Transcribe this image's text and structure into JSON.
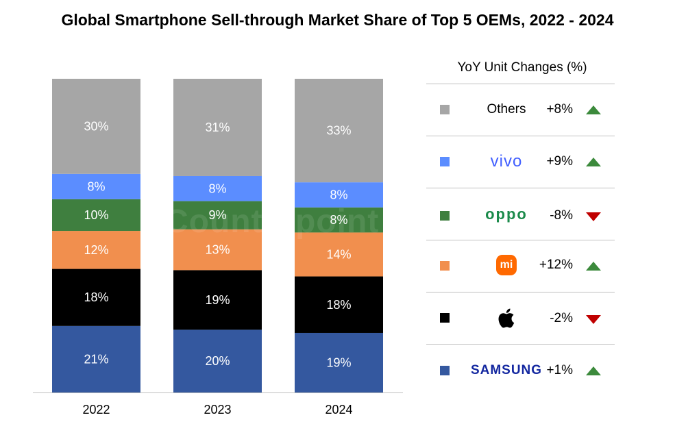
{
  "title": "Global Smartphone Sell-through Market Share of Top 5 OEMs, 2022 - 2024",
  "watermark": "Counterpoint",
  "colors": {
    "Others": "#a6a6a6",
    "vivo": "#5b8dff",
    "OPPO": "#3f7f3f",
    "Xiaomi": "#f18f4e",
    "Apple": "#000000",
    "Samsung": "#34589f",
    "up": "#3c8a3c",
    "down": "#c00000"
  },
  "chart_data": {
    "type": "bar",
    "stacked": true,
    "categories": [
      "2022",
      "2023",
      "2024"
    ],
    "series": [
      {
        "name": "Samsung",
        "values": [
          21,
          20,
          19
        ]
      },
      {
        "name": "Apple",
        "values": [
          18,
          19,
          18
        ]
      },
      {
        "name": "Xiaomi",
        "values": [
          12,
          13,
          14
        ]
      },
      {
        "name": "OPPO",
        "values": [
          10,
          9,
          8
        ]
      },
      {
        "name": "vivo",
        "values": [
          8,
          8,
          8
        ]
      },
      {
        "name": "Others",
        "values": [
          30,
          31,
          33
        ]
      }
    ],
    "label_suffix": "%",
    "ylim": [
      0,
      100
    ],
    "grid": false,
    "legend": "right"
  },
  "legend": {
    "title": "YoY Unit Changes (%)",
    "items": [
      {
        "brand": "Others",
        "change": "+8%",
        "direction": "up"
      },
      {
        "brand": "vivo",
        "change": "+9%",
        "direction": "up"
      },
      {
        "brand": "oppo",
        "change": "-8%",
        "direction": "down"
      },
      {
        "brand": "mi",
        "change": "+12%",
        "direction": "up",
        "icon": "xiaomi-logo-icon"
      },
      {
        "brand": "",
        "change": "-2%",
        "direction": "down",
        "icon": "apple-logo-icon"
      },
      {
        "brand": "SAMSUNG",
        "change": "+1%",
        "direction": "up"
      }
    ]
  }
}
